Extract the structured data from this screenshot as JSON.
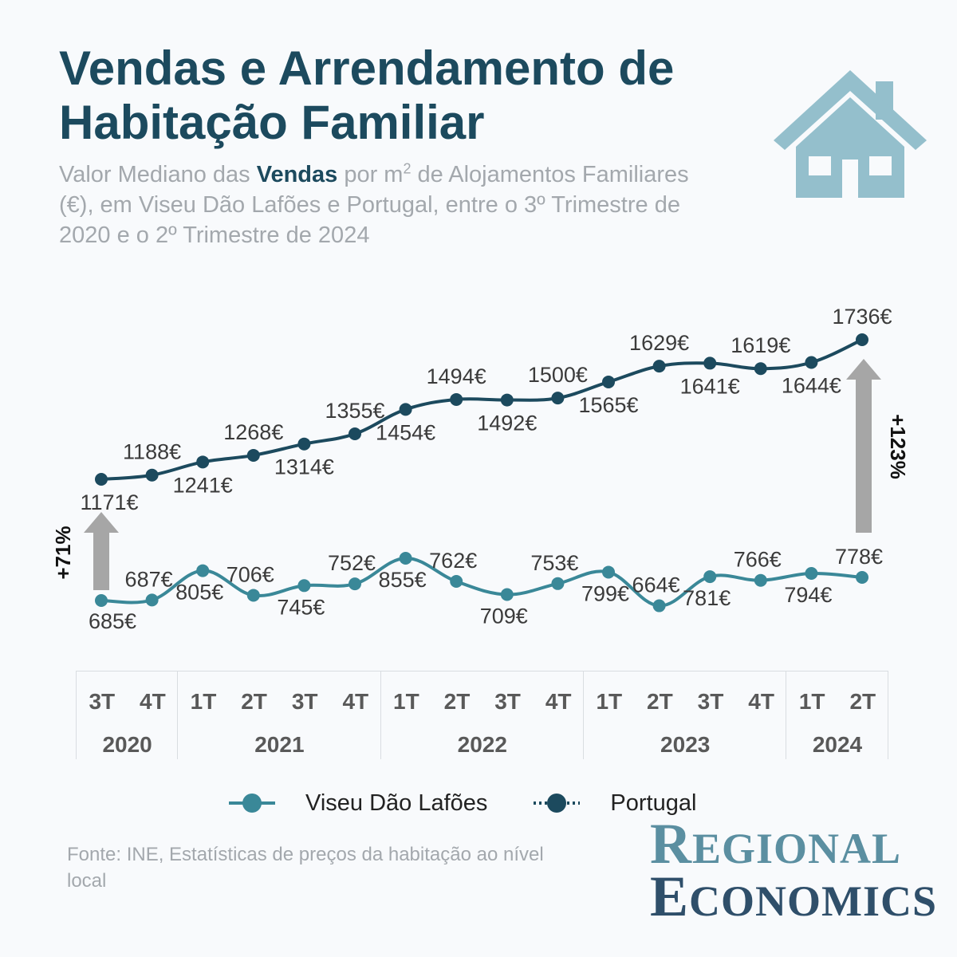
{
  "title": [
    "Vendas e Arrendamento de",
    "Habitação Familiar"
  ],
  "subtitle": {
    "part1": "Valor Mediano das ",
    "bold": "Vendas",
    "part2": " por m",
    "sup": "2",
    "part3": " de Alojamentos Familiares (€), em Viseu Dão Lafões e Portugal, entre o 3º Trimestre de 2020 e o 2º Trimestre de 2024"
  },
  "icons": {
    "house": "house-icon"
  },
  "colors": {
    "portugal": "#1c4a5e",
    "viseu": "#3a8898",
    "arrow": "#a6a6a6",
    "house": "#94bfcc"
  },
  "chart_data": {
    "type": "line",
    "x": [
      "3T 2020",
      "4T 2020",
      "1T 2021",
      "2T 2021",
      "3T 2021",
      "4T 2021",
      "1T 2022",
      "2T 2022",
      "3T 2022",
      "4T 2022",
      "1T 2023",
      "2T 2023",
      "3T 2023",
      "4T 2023",
      "1T 2024",
      "2T 2024"
    ],
    "quarters": [
      "3T",
      "4T",
      "1T",
      "2T",
      "3T",
      "4T",
      "1T",
      "2T",
      "3T",
      "4T",
      "1T",
      "2T",
      "3T",
      "4T",
      "1T",
      "2T"
    ],
    "years": [
      {
        "label": "2020",
        "count": 2
      },
      {
        "label": "2021",
        "count": 4
      },
      {
        "label": "2022",
        "count": 4
      },
      {
        "label": "2023",
        "count": 4
      },
      {
        "label": "2024",
        "count": 2
      }
    ],
    "unit": "€",
    "series": [
      {
        "name": "Portugal",
        "values": [
          1171,
          1188,
          1241,
          1268,
          1314,
          1355,
          1454,
          1494,
          1492,
          1500,
          1565,
          1629,
          1641,
          1619,
          1644,
          1736
        ]
      },
      {
        "name": "Viseu Dão Lafões",
        "values": [
          685,
          687,
          805,
          706,
          745,
          752,
          855,
          762,
          709,
          753,
          799,
          664,
          781,
          766,
          794,
          778
        ]
      }
    ],
    "annotations": [
      {
        "text": "+71%",
        "from": "Viseu Dão Lafões 3T 2020",
        "to": "Portugal 3T 2020"
      },
      {
        "text": "+123%",
        "from": "Viseu Dão Lafões 2T 2024",
        "to": "Portugal 2T 2024"
      }
    ]
  },
  "legend": [
    {
      "label": "Viseu Dão Lafões",
      "series": "Viseu Dão Lafões"
    },
    {
      "label": "Portugal",
      "series": "Portugal"
    }
  ],
  "source": "Fonte: INE, Estatísticas de preços da habitação ao nível local",
  "logo": {
    "line1_initial": "R",
    "line1_rest": "EGIONAL",
    "line2_initial": "E",
    "line2_rest": "CONOMICS"
  }
}
